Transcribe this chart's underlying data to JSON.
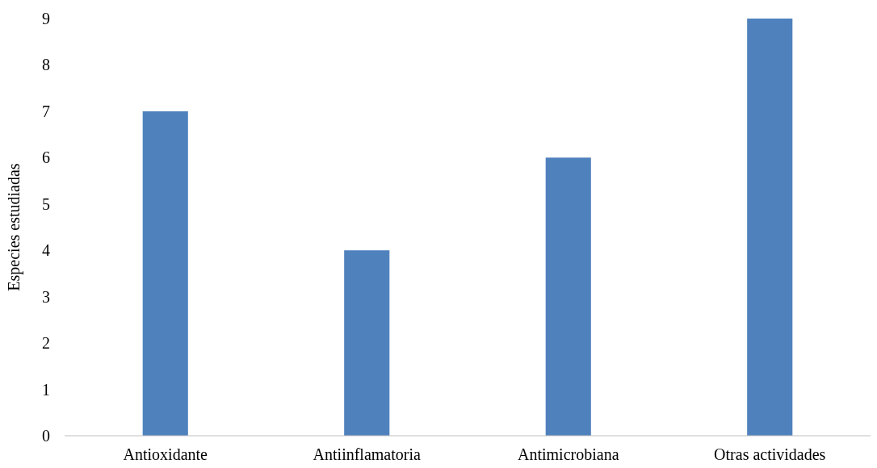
{
  "chart_data": {
    "type": "bar",
    "ylabel": "Especies estudiadas",
    "categories": [
      "Antioxidante",
      "Antiinflamatoria",
      "Antimicrobiana",
      "Otras actividades"
    ],
    "values": [
      7,
      4,
      6,
      9
    ],
    "color": "#4f81bd",
    "ylim": [
      0,
      9
    ],
    "yticks": [
      0,
      1,
      2,
      3,
      4,
      5,
      6,
      7,
      8,
      9
    ],
    "grid": false
  }
}
